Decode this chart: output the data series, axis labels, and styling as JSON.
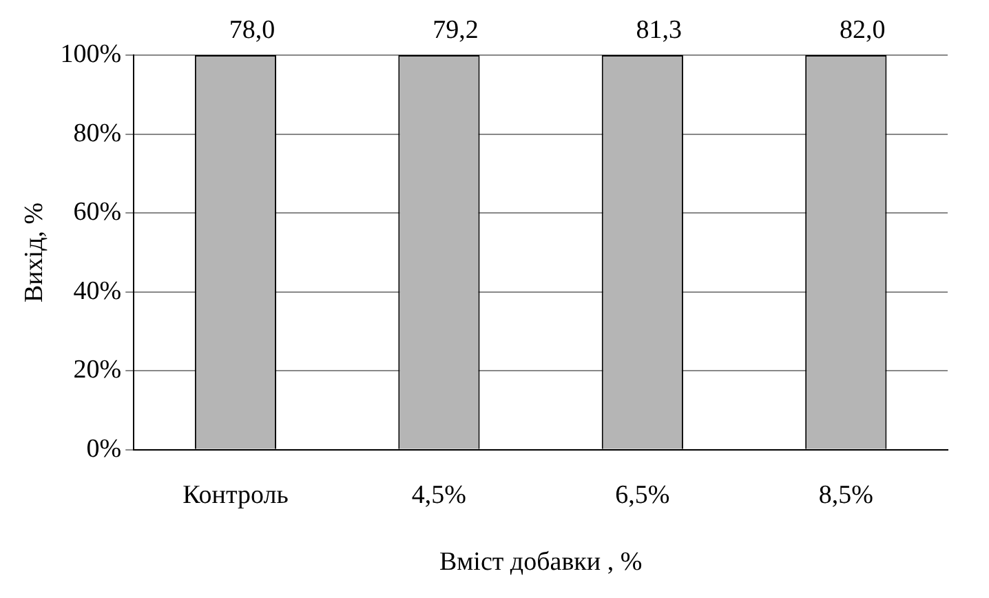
{
  "chart_data": {
    "type": "bar",
    "xlabel": "Вміст добавки , %",
    "ylabel": "Вихід, %",
    "categories": [
      "Контроль",
      "4,5%",
      "6,5%",
      "8,5%"
    ],
    "values": [
      100,
      100,
      100,
      100
    ],
    "annotations": [
      {
        "text": "78,0",
        "x": "Контроль",
        "y": 100
      },
      {
        "text": "79,2",
        "x": "4,5%",
        "y": 100
      },
      {
        "text": "81,3",
        "x": "6,5%",
        "y": 100
      },
      {
        "text": "82,0",
        "x": "8,5%",
        "y": 100
      }
    ],
    "color": "#b5b5b5",
    "ylim": [
      0,
      100
    ],
    "yticks": [
      {
        "value": 0,
        "label": "0%"
      },
      {
        "value": 20,
        "label": "20%"
      },
      {
        "value": 40,
        "label": "40%"
      },
      {
        "value": 60,
        "label": "60%"
      },
      {
        "value": 80,
        "label": "80%"
      },
      {
        "value": 100,
        "label": "100%"
      }
    ],
    "grid": "y",
    "legend": false
  }
}
